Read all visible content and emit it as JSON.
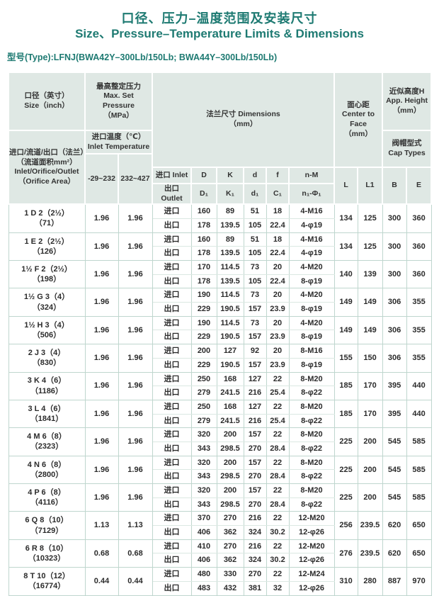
{
  "colors": {
    "accent": "#1e7a72",
    "header_bg": "#dfe8e4",
    "grid": "#bfd6ce"
  },
  "page": {
    "title_zh": "口径、压力–温度范围及安装尺寸",
    "title_en": "Size、Pressure–Temperature Limits & Dimensions",
    "type_line": "型号(Type):LFNJ(BWA42Y–300Lb/150Lb; BWA44Y–300Lb/150Lb)"
  },
  "table": {
    "header": {
      "size_zh": "口径（英寸）",
      "size_en": "Size（inch）",
      "size_sub": [
        "进口/流道/出口（法兰）",
        "（流道面积mm²）",
        "Inlet/Orifice/Outlet",
        "（Orifice  Area）"
      ],
      "pressure": [
        "最高整定压力",
        "Max. Set",
        "Pressure",
        "（MPa）"
      ],
      "inlet_temp": [
        "进口温度（℃）",
        "Inlet Temperature"
      ],
      "temp_ranges": [
        "-29~232",
        "232~427"
      ],
      "flange": [
        "法兰尺寸 Dimensions",
        "（mm）"
      ],
      "inlet_row_label": "进口 Inlet",
      "outlet_row_label": "出口 Outlet",
      "inlet_cols": [
        "D",
        "K",
        "d",
        "f",
        "n-M"
      ],
      "outlet_cols": [
        "D₁",
        "K₁",
        "d₁",
        "C₁",
        "n₁-Φ₁"
      ],
      "center_to_face": [
        "面心距",
        "Center to",
        "Face",
        "（mm）"
      ],
      "app_height": [
        "近似高度H",
        "App. Height",
        "（mm）"
      ],
      "cap_types": [
        "阀帽型式",
        "Cap Types"
      ],
      "tail_cols": [
        "L",
        "L1",
        "B",
        "E"
      ]
    },
    "inlet_label": "进口",
    "outlet_label": "出口",
    "rows": [
      {
        "label": "1 D 2（2½）",
        "area": "（71）",
        "pressure": [
          "1.96",
          "1.96"
        ],
        "inlet": [
          "160",
          "89",
          "51",
          "18",
          "4-M16"
        ],
        "outlet": [
          "178",
          "139.5",
          "105",
          "22.4",
          "4-φ19"
        ],
        "tail": [
          "134",
          "125",
          "300",
          "360"
        ]
      },
      {
        "label": "1 E 2（2½）",
        "area": "（126）",
        "pressure": [
          "1.96",
          "1.96"
        ],
        "inlet": [
          "160",
          "89",
          "51",
          "18",
          "4-M16"
        ],
        "outlet": [
          "178",
          "139.5",
          "105",
          "22.4",
          "4-φ19"
        ],
        "tail": [
          "134",
          "125",
          "300",
          "360"
        ]
      },
      {
        "label": "1½ F 2（2½）",
        "area": "（198）",
        "pressure": [
          "1.96",
          "1.96"
        ],
        "inlet": [
          "170",
          "114.5",
          "73",
          "20",
          "4-M20"
        ],
        "outlet": [
          "178",
          "139.5",
          "105",
          "22.4",
          "8-φ19"
        ],
        "tail": [
          "140",
          "139",
          "300",
          "360"
        ]
      },
      {
        "label": "1½ G 3（4）",
        "area": "（324）",
        "pressure": [
          "1.96",
          "1.96"
        ],
        "inlet": [
          "190",
          "114.5",
          "73",
          "20",
          "4-M20"
        ],
        "outlet": [
          "229",
          "190.5",
          "157",
          "23.9",
          "8-φ19"
        ],
        "tail": [
          "149",
          "149",
          "306",
          "355"
        ]
      },
      {
        "label": "1½ H 3（4）",
        "area": "（506）",
        "pressure": [
          "1.96",
          "1.96"
        ],
        "inlet": [
          "190",
          "114.5",
          "73",
          "20",
          "4-M20"
        ],
        "outlet": [
          "229",
          "190.5",
          "157",
          "23.9",
          "8-φ19"
        ],
        "tail": [
          "149",
          "149",
          "306",
          "355"
        ]
      },
      {
        "label": "2 J 3（4）",
        "area": "（830）",
        "pressure": [
          "1.96",
          "1.96"
        ],
        "inlet": [
          "200",
          "127",
          "92",
          "20",
          "8-M16"
        ],
        "outlet": [
          "229",
          "190.5",
          "157",
          "23.9",
          "8-φ19"
        ],
        "tail": [
          "155",
          "150",
          "306",
          "355"
        ]
      },
      {
        "label": "3 K 4（6）",
        "area": "（1186）",
        "pressure": [
          "1.96",
          "1.96"
        ],
        "inlet": [
          "250",
          "168",
          "127",
          "22",
          "8-M20"
        ],
        "outlet": [
          "279",
          "241.5",
          "216",
          "25.4",
          "8-φ22"
        ],
        "tail": [
          "185",
          "170",
          "395",
          "440"
        ]
      },
      {
        "label": "3 L 4（6）",
        "area": "（1841）",
        "pressure": [
          "1.96",
          "1.96"
        ],
        "inlet": [
          "250",
          "168",
          "127",
          "22",
          "8-M20"
        ],
        "outlet": [
          "279",
          "241.5",
          "216",
          "25.4",
          "8-φ22"
        ],
        "tail": [
          "185",
          "170",
          "395",
          "440"
        ]
      },
      {
        "label": "4 M 6（8）",
        "area": "（2323）",
        "pressure": [
          "1.96",
          "1.96"
        ],
        "inlet": [
          "320",
          "200",
          "157",
          "22",
          "8-M20"
        ],
        "outlet": [
          "343",
          "298.5",
          "270",
          "28.4",
          "8-φ22"
        ],
        "tail": [
          "225",
          "200",
          "545",
          "585"
        ]
      },
      {
        "label": "4 N 6（8）",
        "area": "（2800）",
        "pressure": [
          "1.96",
          "1.96"
        ],
        "inlet": [
          "320",
          "200",
          "157",
          "22",
          "8-M20"
        ],
        "outlet": [
          "343",
          "298.5",
          "270",
          "28.4",
          "8-φ22"
        ],
        "tail": [
          "225",
          "200",
          "545",
          "585"
        ]
      },
      {
        "label": "4 P 6（8）",
        "area": "（4116）",
        "pressure": [
          "1.96",
          "1.96"
        ],
        "inlet": [
          "320",
          "200",
          "157",
          "22",
          "8-M20"
        ],
        "outlet": [
          "343",
          "298.5",
          "270",
          "28.4",
          "8-φ22"
        ],
        "tail": [
          "225",
          "200",
          "545",
          "585"
        ]
      },
      {
        "label": "6 Q 8（10）",
        "area": "（7129）",
        "pressure": [
          "1.13",
          "1.13"
        ],
        "inlet": [
          "370",
          "270",
          "216",
          "22",
          "12-M20"
        ],
        "outlet": [
          "406",
          "362",
          "324",
          "30.2",
          "12-φ26"
        ],
        "tail": [
          "256",
          "239.5",
          "620",
          "650"
        ]
      },
      {
        "label": "6 R 8（10）",
        "area": "（10323）",
        "pressure": [
          "0.68",
          "0.68"
        ],
        "inlet": [
          "410",
          "270",
          "216",
          "22",
          "12-M20"
        ],
        "outlet": [
          "406",
          "362",
          "324",
          "30.2",
          "12-φ26"
        ],
        "tail": [
          "276",
          "239.5",
          "620",
          "650"
        ]
      },
      {
        "label": "8 T 10（12）",
        "area": "（16774）",
        "pressure": [
          "0.44",
          "0.44"
        ],
        "inlet": [
          "480",
          "330",
          "270",
          "22",
          "12-M24"
        ],
        "outlet": [
          "483",
          "432",
          "381",
          "32",
          "12-φ26"
        ],
        "tail": [
          "310",
          "280",
          "887",
          "970"
        ]
      }
    ]
  }
}
